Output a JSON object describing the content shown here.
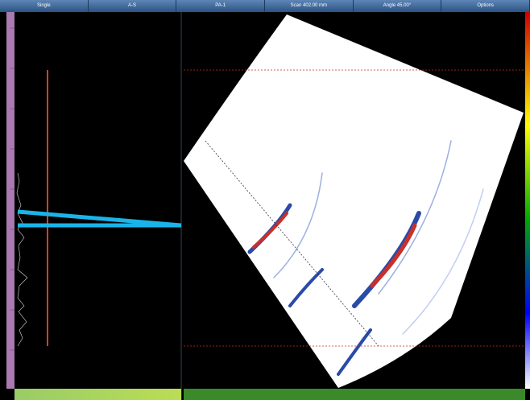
{
  "toolbar": {
    "items": [
      "Single",
      "A-S",
      "PA-1",
      "Scan 402.00 mm",
      "Angle 45.00°",
      "Options"
    ]
  }
}
